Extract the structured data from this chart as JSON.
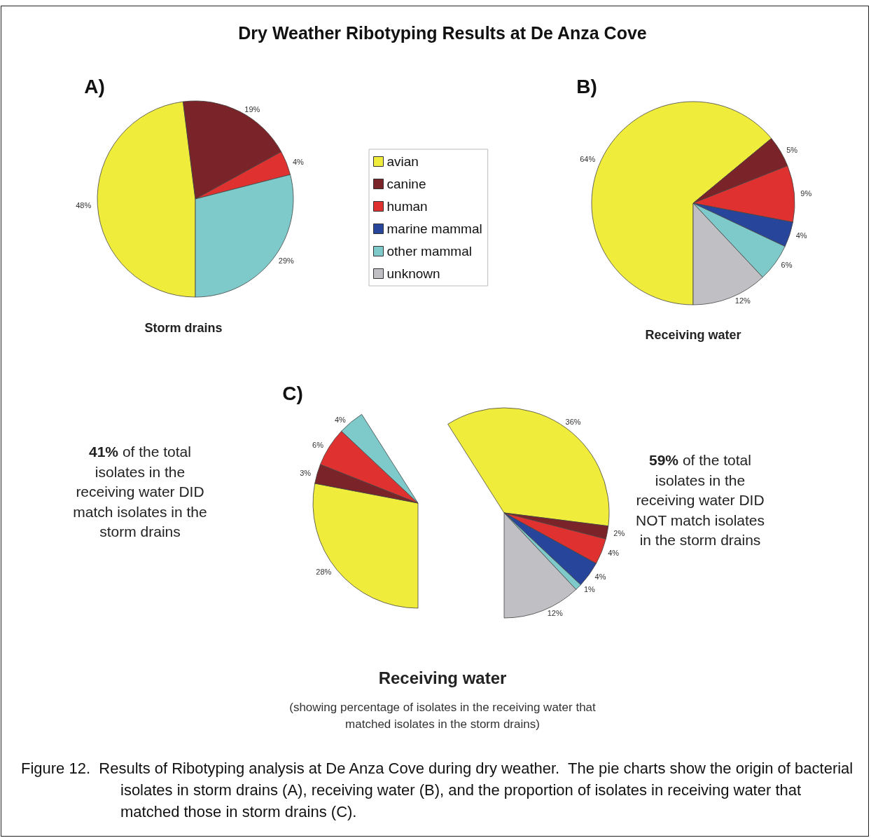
{
  "chart_data": [
    {
      "type": "pie",
      "title": "A)",
      "annotations": [
        "Dry Weather Ribotyping Results at De Anza Cove",
        "Storm drains"
      ],
      "categories": [
        null,
        null,
        null,
        null
      ],
      "values": [
        48,
        19,
        4,
        29
      ],
      "colors": [
        "#f0ec3c",
        "#7a2328",
        "#e03131",
        "#7ecaca"
      ],
      "value_labels": [
        "48%",
        "19%",
        "4%",
        "29%"
      ]
    },
    {
      "type": "pie",
      "title": "B)",
      "annotations": [
        "Receiving water"
      ],
      "legend": "left",
      "categories": [
        "avian",
        "canine",
        "human",
        "marine mammal",
        "other mammal",
        "unknown"
      ],
      "values": [
        64,
        5,
        9,
        4,
        6,
        12
      ],
      "colors": [
        "#f0ec3c",
        "#7a2328",
        "#e03131",
        "#27459a",
        "#7ecaca",
        "#c0c0c4"
      ],
      "value_labels": [
        "64%",
        "5%",
        "9%",
        "4%",
        "6%",
        "12%"
      ]
    },
    {
      "type": "pie",
      "title": "C)",
      "annotations": [
        "41% of the total isolates in the receiving water DID match isolates in the storm drains",
        "59% of the total isolates in the receiving water DID NOT match isolates in the storm drains",
        "Receiving water",
        "(showing percentage of isolates in the receiving water that matched isolates in the storm drains)",
        "Figure 12.  Results of Ribotyping analysis at De Anza Cove during dry weather.  The pie charts show the origin of bacterial isolates in storm drains (A), receiving water (B), and the proportion of isolates in receiving water that matched those in storm drains (C)."
      ],
      "series": [
        {
          "values": [
            28,
            3,
            6,
            4
          ],
          "colors": [
            "#f0ec3c",
            "#7a2328",
            "#e03131",
            "#7ecaca"
          ],
          "value_labels": [
            "28%",
            "3%",
            "6%",
            "4%"
          ]
        },
        {
          "values": [
            36,
            2,
            4,
            4,
            1,
            12
          ],
          "colors": [
            "#f0ec3c",
            "#7a2328",
            "#e03131",
            "#27459a",
            "#7ecaca",
            "#c0c0c4"
          ],
          "value_labels": [
            "36%",
            "2%",
            "4%",
            "4%",
            "1%",
            "12%"
          ]
        }
      ]
    }
  ]
}
